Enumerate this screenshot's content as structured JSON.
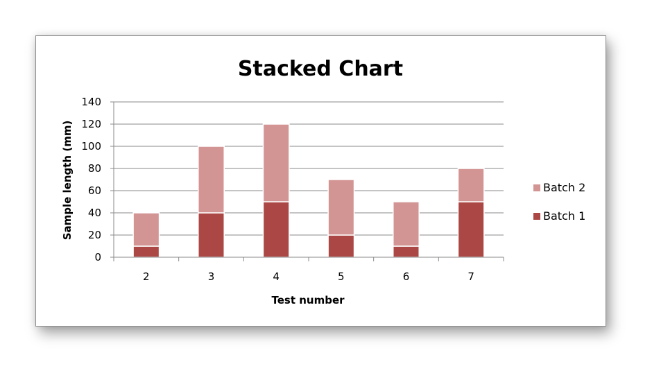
{
  "chart_data": {
    "type": "bar",
    "stacked": true,
    "title": "Stacked Chart",
    "xlabel": "Test number",
    "ylabel": "Sample length (mm)",
    "categories": [
      "2",
      "3",
      "4",
      "5",
      "6",
      "7"
    ],
    "series": [
      {
        "name": "Batch 1",
        "values": [
          10,
          40,
          50,
          20,
          10,
          50
        ],
        "color": "#ab4744"
      },
      {
        "name": "Batch 2",
        "values": [
          30,
          60,
          70,
          50,
          40,
          30
        ],
        "color": "#d39594"
      }
    ],
    "ylim": [
      0,
      140
    ],
    "yticks": [
      "0",
      "20",
      "40",
      "60",
      "80",
      "100",
      "120",
      "140"
    ],
    "grid": true,
    "legend_position": "right"
  }
}
